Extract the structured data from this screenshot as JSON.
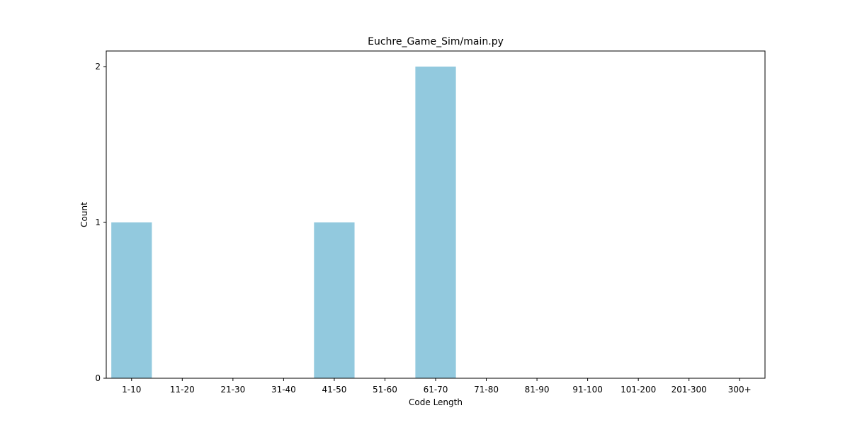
{
  "chart_data": {
    "type": "bar",
    "title": "Euchre_Game_Sim/main.py",
    "xlabel": "Code Length",
    "ylabel": "Count",
    "categories": [
      "1-10",
      "11-20",
      "21-30",
      "31-40",
      "41-50",
      "51-60",
      "61-70",
      "71-80",
      "81-90",
      "91-100",
      "101-200",
      "201-300",
      "300+"
    ],
    "values": [
      1,
      0,
      0,
      0,
      1,
      0,
      2,
      0,
      0,
      0,
      0,
      0,
      0
    ],
    "ylim": [
      0,
      2.1
    ],
    "yticks": [
      0,
      1,
      2
    ],
    "grid": false,
    "bar_color": "#92c9de"
  }
}
